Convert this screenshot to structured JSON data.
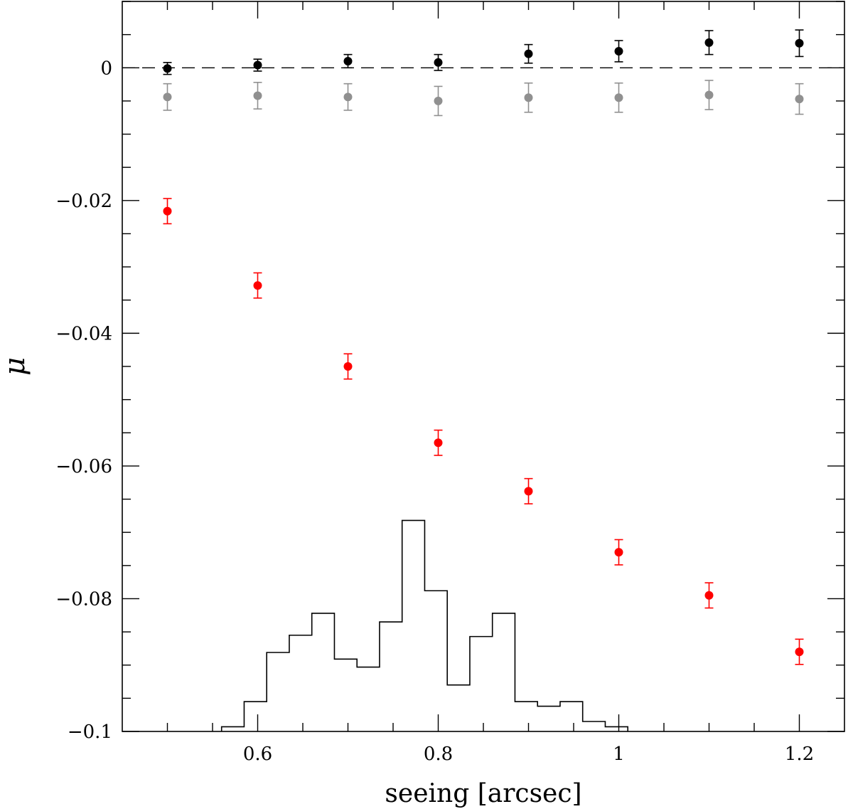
{
  "chart_data": {
    "type": "scatter",
    "xlabel": "seeing [arcsec]",
    "ylabel": "μ",
    "xlim": [
      0.45,
      1.25
    ],
    "ylim": [
      -0.1,
      0.01
    ],
    "x_ticks_major": [
      0.6,
      0.8,
      1.0,
      1.2
    ],
    "x_tick_labels": [
      "0.6",
      "0.8",
      "1",
      "1.2"
    ],
    "y_ticks_major": [
      0,
      -0.02,
      -0.04,
      -0.06,
      -0.08,
      -0.1
    ],
    "y_tick_labels": [
      "0",
      "−0.02",
      "−0.04",
      "−0.06",
      "−0.08",
      "−0.1"
    ],
    "reference_line": {
      "y": 0,
      "style": "dashed"
    },
    "series": [
      {
        "color": "#000000",
        "x": [
          0.5,
          0.6,
          0.7,
          0.8,
          0.9,
          1.0,
          1.1,
          1.2
        ],
        "y": [
          -0.0001,
          0.0004,
          0.001,
          0.0008,
          0.0021,
          0.0025,
          0.0038,
          0.0037
        ],
        "err": [
          0.0009,
          0.0009,
          0.001,
          0.0012,
          0.0014,
          0.0016,
          0.0018,
          0.002
        ]
      },
      {
        "color": "#909090",
        "x": [
          0.5,
          0.6,
          0.7,
          0.8,
          0.9,
          1.0,
          1.1,
          1.2
        ],
        "y": [
          -0.0044,
          -0.0042,
          -0.0044,
          -0.005,
          -0.0045,
          -0.0045,
          -0.0041,
          -0.0047
        ],
        "err": [
          0.002,
          0.002,
          0.002,
          0.0022,
          0.0022,
          0.0022,
          0.0022,
          0.0023
        ]
      },
      {
        "color": "#ff0000",
        "x": [
          0.5,
          0.6,
          0.7,
          0.8,
          0.9,
          1.0,
          1.1,
          1.2
        ],
        "y": [
          -0.0216,
          -0.0328,
          -0.045,
          -0.0565,
          -0.0638,
          -0.073,
          -0.0795,
          -0.088
        ],
        "err": [
          0.0019,
          0.0019,
          0.0019,
          0.0019,
          0.0019,
          0.0019,
          0.0019,
          0.0019
        ]
      }
    ],
    "histogram": {
      "color": "#000000",
      "bin_edges": [
        0.56,
        0.585,
        0.61,
        0.635,
        0.66,
        0.685,
        0.71,
        0.735,
        0.76,
        0.785,
        0.81,
        0.835,
        0.86,
        0.885,
        0.91,
        0.935,
        0.96,
        0.985,
        1.01
      ],
      "values": [
        -0.0993,
        -0.0955,
        -0.0881,
        -0.0855,
        -0.0822,
        -0.0891,
        -0.0903,
        -0.0835,
        -0.0682,
        -0.0788,
        -0.093,
        -0.0857,
        -0.0822,
        -0.0955,
        -0.0962,
        -0.0955,
        -0.0985,
        -0.0993
      ]
    }
  }
}
